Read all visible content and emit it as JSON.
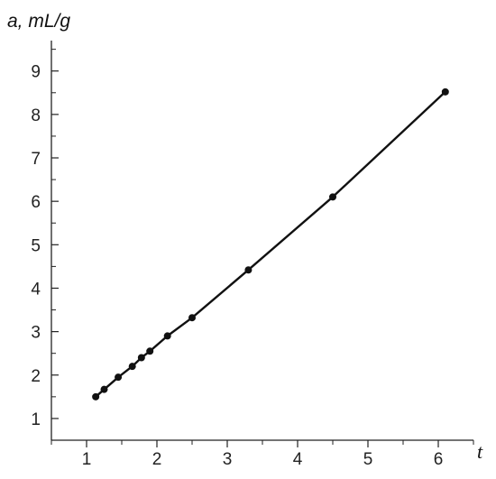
{
  "chart_data": {
    "type": "line",
    "title": "",
    "xlabel": "t",
    "ylabel": "a, mL/g",
    "xlim": [
      0.5,
      6.5
    ],
    "ylim": [
      0.5,
      9.7
    ],
    "x_ticks": [
      1,
      2,
      3,
      4,
      5,
      6
    ],
    "y_ticks": [
      1,
      2,
      3,
      4,
      5,
      6,
      7,
      8,
      9
    ],
    "grid": false,
    "series": [
      {
        "x": [
          1.13,
          1.25,
          1.45,
          1.65,
          1.78,
          1.9,
          2.15,
          2.5,
          3.3,
          4.5,
          6.1
        ],
        "y": [
          1.5,
          1.67,
          1.95,
          2.2,
          2.4,
          2.55,
          2.9,
          3.32,
          4.42,
          6.1,
          8.52
        ]
      }
    ]
  }
}
